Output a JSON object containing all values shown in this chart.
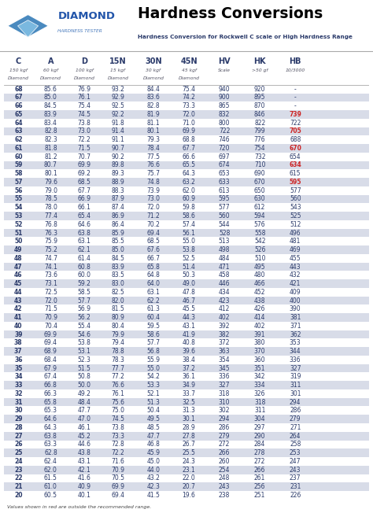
{
  "title": "Hardness Conversions",
  "subtitle": "Hardness Conversion for Rockwell C scale or High Hardness Range",
  "col_headers": [
    "C",
    "A",
    "D",
    "15N",
    "30N",
    "45N",
    "HV",
    "HK",
    "HB"
  ],
  "col_sub1": [
    "150 kgf",
    "60 kgf",
    "100 kgf",
    "15 kgf",
    "30 kgf",
    "45 kgf",
    "Scale",
    ">50 gf",
    "10/3000"
  ],
  "col_sub2": [
    "Diamond",
    "Diamond",
    "Diamond",
    "Diamond",
    "Diamond",
    "Diamond",
    "",
    "",
    ""
  ],
  "rows": [
    [
      68,
      85.6,
      76.9,
      93.2,
      84.4,
      75.4,
      940,
      920,
      "-"
    ],
    [
      67,
      85.0,
      76.1,
      92.9,
      83.6,
      74.2,
      900,
      895,
      "-"
    ],
    [
      66,
      84.5,
      75.4,
      92.5,
      82.8,
      73.3,
      865,
      870,
      "-"
    ],
    [
      65,
      83.9,
      74.5,
      92.2,
      81.9,
      72.0,
      832,
      846,
      739
    ],
    [
      64,
      83.4,
      73.8,
      91.8,
      81.1,
      71.0,
      800,
      822,
      722
    ],
    [
      63,
      82.8,
      73.0,
      91.4,
      80.1,
      69.9,
      722,
      799,
      705
    ],
    [
      62,
      82.3,
      72.2,
      91.1,
      79.3,
      68.8,
      746,
      776,
      688
    ],
    [
      61,
      81.8,
      71.5,
      90.7,
      78.4,
      67.7,
      720,
      754,
      670
    ],
    [
      60,
      81.2,
      70.7,
      90.2,
      77.5,
      66.6,
      697,
      732,
      654
    ],
    [
      59,
      80.7,
      69.9,
      89.8,
      76.6,
      65.5,
      674,
      710,
      634
    ],
    [
      58,
      80.1,
      69.2,
      89.3,
      75.7,
      64.3,
      653,
      690,
      615
    ],
    [
      57,
      79.6,
      68.5,
      88.9,
      74.8,
      63.2,
      633,
      670,
      595
    ],
    [
      56,
      79.0,
      67.7,
      88.3,
      73.9,
      62.0,
      613,
      650,
      577
    ],
    [
      55,
      78.5,
      66.9,
      87.9,
      73.0,
      60.9,
      595,
      630,
      560
    ],
    [
      54,
      78.0,
      66.1,
      87.4,
      72.0,
      59.8,
      577,
      612,
      543
    ],
    [
      53,
      77.4,
      65.4,
      86.9,
      71.2,
      58.6,
      560,
      594,
      525
    ],
    [
      52,
      76.8,
      64.6,
      86.4,
      70.2,
      57.4,
      544,
      576,
      512
    ],
    [
      51,
      76.3,
      63.8,
      85.9,
      69.4,
      56.1,
      528,
      558,
      496
    ],
    [
      50,
      75.9,
      63.1,
      85.5,
      68.5,
      55.0,
      513,
      542,
      481
    ],
    [
      49,
      75.2,
      62.1,
      85.0,
      67.6,
      53.8,
      498,
      526,
      469
    ],
    [
      48,
      74.7,
      61.4,
      84.5,
      66.7,
      52.5,
      484,
      510,
      455
    ],
    [
      47,
      74.1,
      60.8,
      83.9,
      65.8,
      51.4,
      471,
      495,
      443
    ],
    [
      46,
      73.6,
      60.0,
      83.5,
      64.8,
      50.3,
      458,
      480,
      432
    ],
    [
      45,
      73.1,
      59.2,
      83.0,
      64.0,
      49.0,
      446,
      466,
      421
    ],
    [
      44,
      72.5,
      58.5,
      82.5,
      63.1,
      47.8,
      434,
      452,
      409
    ],
    [
      43,
      72.0,
      57.7,
      82.0,
      62.2,
      46.7,
      423,
      438,
      400
    ],
    [
      42,
      71.5,
      56.9,
      81.5,
      61.3,
      45.5,
      412,
      426,
      390
    ],
    [
      41,
      70.9,
      56.2,
      80.9,
      60.4,
      44.3,
      402,
      414,
      381
    ],
    [
      40,
      70.4,
      55.4,
      80.4,
      59.5,
      43.1,
      392,
      402,
      371
    ],
    [
      39,
      69.9,
      54.6,
      79.9,
      58.6,
      41.9,
      382,
      391,
      362
    ],
    [
      38,
      69.4,
      53.8,
      79.4,
      57.7,
      40.8,
      372,
      380,
      353
    ],
    [
      37,
      68.9,
      53.1,
      78.8,
      56.8,
      39.6,
      363,
      370,
      344
    ],
    [
      36,
      68.4,
      52.3,
      78.3,
      55.9,
      38.4,
      354,
      360,
      336
    ],
    [
      35,
      67.9,
      51.5,
      77.7,
      55.0,
      37.2,
      345,
      351,
      327
    ],
    [
      34,
      67.4,
      50.8,
      77.2,
      54.2,
      36.1,
      336,
      342,
      319
    ],
    [
      33,
      66.8,
      50.0,
      76.6,
      53.3,
      34.9,
      327,
      334,
      311
    ],
    [
      32,
      66.3,
      49.2,
      76.1,
      52.1,
      33.7,
      318,
      326,
      301
    ],
    [
      31,
      65.8,
      48.4,
      75.6,
      51.3,
      32.5,
      310,
      318,
      294
    ],
    [
      30,
      65.3,
      47.7,
      75.0,
      50.4,
      31.3,
      302,
      311,
      286
    ],
    [
      29,
      64.6,
      47.0,
      74.5,
      49.5,
      30.1,
      294,
      304,
      279
    ],
    [
      28,
      64.3,
      46.1,
      73.8,
      48.5,
      28.9,
      286,
      297,
      271
    ],
    [
      27,
      63.8,
      45.2,
      73.3,
      47.7,
      27.8,
      279,
      290,
      264
    ],
    [
      26,
      63.3,
      44.6,
      72.8,
      46.8,
      26.7,
      272,
      284,
      258
    ],
    [
      25,
      62.8,
      43.8,
      72.2,
      45.9,
      25.5,
      266,
      278,
      253
    ],
    [
      24,
      62.4,
      43.1,
      71.6,
      45.0,
      24.3,
      260,
      272,
      247
    ],
    [
      23,
      62.0,
      42.1,
      70.9,
      44.0,
      23.1,
      254,
      266,
      243
    ],
    [
      22,
      61.5,
      41.6,
      70.5,
      43.2,
      22.0,
      248,
      261,
      237
    ],
    [
      21,
      61.0,
      40.9,
      69.9,
      42.3,
      20.7,
      243,
      256,
      231
    ],
    [
      20,
      60.5,
      40.1,
      69.4,
      41.5,
      19.6,
      238,
      251,
      226
    ]
  ],
  "red_hb_rows": [
    3,
    5,
    7,
    9,
    11
  ],
  "shade_color": "#d8dce8",
  "text_color_dark": "#2a3a6a",
  "red_color": "#cc2222",
  "footer_note": "Values shown in red are outside the recommended range."
}
